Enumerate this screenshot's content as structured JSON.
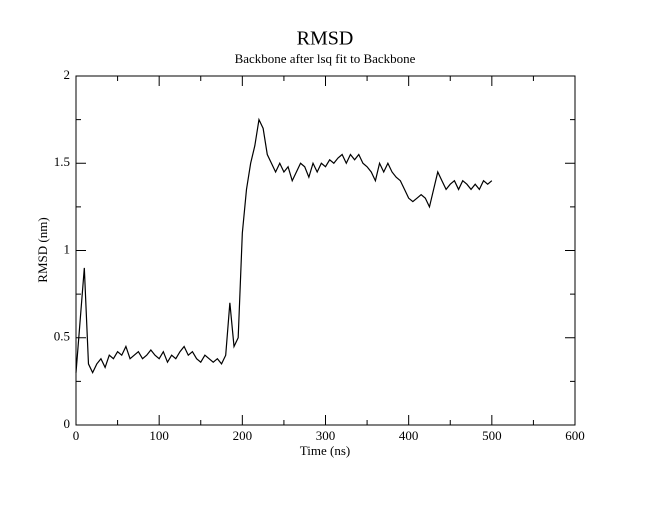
{
  "chart_data": {
    "type": "line",
    "title": "RMSD",
    "subtitle": "Backbone after lsq fit to Backbone",
    "x_label": "Time (ns)",
    "y_label": "RMSD (nm)",
    "xlim": [
      0,
      600
    ],
    "xticks": [
      0,
      100,
      200,
      300,
      400,
      500,
      600
    ],
    "xminorticks": [
      50,
      150,
      250,
      350,
      450,
      550
    ],
    "ylim": [
      0,
      2
    ],
    "yticks": [
      0,
      0.5,
      1,
      1.5,
      2
    ],
    "yminorticks": [
      0.25,
      0.75,
      1.25,
      1.75
    ],
    "series": [
      {
        "color": "#000000",
        "x": [
          0,
          5,
          10,
          15,
          20,
          25,
          30,
          35,
          40,
          45,
          50,
          55,
          60,
          65,
          70,
          75,
          80,
          85,
          90,
          95,
          100,
          105,
          110,
          115,
          120,
          125,
          130,
          135,
          140,
          145,
          150,
          155,
          160,
          165,
          170,
          175,
          180,
          185,
          190,
          195,
          200,
          205,
          210,
          215,
          220,
          225,
          230,
          235,
          240,
          245,
          250,
          255,
          260,
          265,
          270,
          275,
          280,
          285,
          290,
          295,
          300,
          305,
          310,
          315,
          320,
          325,
          330,
          335,
          340,
          345,
          350,
          355,
          360,
          365,
          370,
          375,
          380,
          385,
          390,
          395,
          400,
          405,
          410,
          415,
          420,
          425,
          430,
          435,
          440,
          445,
          450,
          455,
          460,
          465,
          470,
          475,
          480,
          485,
          490,
          495,
          500
        ],
        "values": [
          0.3,
          0.6,
          0.9,
          0.35,
          0.3,
          0.35,
          0.38,
          0.33,
          0.4,
          0.38,
          0.42,
          0.4,
          0.45,
          0.38,
          0.4,
          0.42,
          0.38,
          0.4,
          0.43,
          0.4,
          0.38,
          0.42,
          0.36,
          0.4,
          0.38,
          0.42,
          0.45,
          0.4,
          0.42,
          0.38,
          0.36,
          0.4,
          0.38,
          0.36,
          0.38,
          0.35,
          0.4,
          0.7,
          0.45,
          0.5,
          1.1,
          1.35,
          1.5,
          1.6,
          1.75,
          1.7,
          1.55,
          1.5,
          1.45,
          1.5,
          1.45,
          1.48,
          1.4,
          1.45,
          1.5,
          1.48,
          1.42,
          1.5,
          1.45,
          1.5,
          1.48,
          1.52,
          1.5,
          1.53,
          1.55,
          1.5,
          1.55,
          1.52,
          1.55,
          1.5,
          1.48,
          1.45,
          1.4,
          1.5,
          1.45,
          1.5,
          1.45,
          1.42,
          1.4,
          1.35,
          1.3,
          1.28,
          1.3,
          1.32,
          1.3,
          1.25,
          1.35,
          1.45,
          1.4,
          1.35,
          1.38,
          1.4,
          1.35,
          1.4,
          1.38,
          1.35,
          1.38,
          1.35,
          1.4,
          1.38,
          1.4
        ]
      }
    ]
  }
}
